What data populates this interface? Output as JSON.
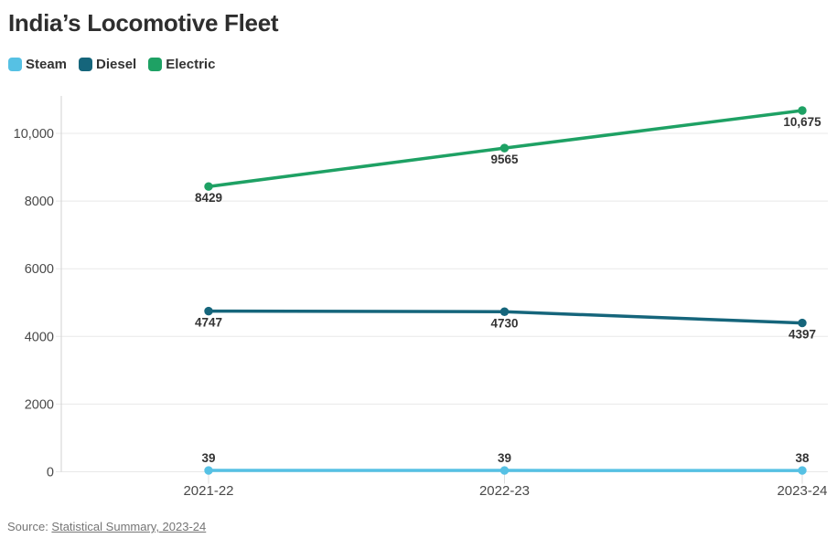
{
  "page": {
    "title": "India’s Locomotive Fleet",
    "source_prefix": "Source: ",
    "source_link": "Statistical Summary, 2023-24"
  },
  "chart_data": {
    "type": "line",
    "title": "India’s Locomotive Fleet",
    "categories": [
      "2021-22",
      "2022-23",
      "2023-24"
    ],
    "series": [
      {
        "name": "Steam",
        "color": "#56c1e4",
        "values": [
          39,
          39,
          38
        ],
        "value_labels": [
          "39",
          "39",
          "38"
        ],
        "label_position": "above"
      },
      {
        "name": "Diesel",
        "color": "#15657b",
        "values": [
          4747,
          4730,
          4397
        ],
        "value_labels": [
          "4747",
          "4730",
          "4397"
        ],
        "label_position": "below"
      },
      {
        "name": "Electric",
        "color": "#1ea164",
        "values": [
          8429,
          9565,
          10675
        ],
        "value_labels": [
          "8429",
          "9565",
          "10,675"
        ],
        "label_position": "below"
      }
    ],
    "yticks": [
      {
        "value": 0,
        "label": "0"
      },
      {
        "value": 2000,
        "label": "2000"
      },
      {
        "value": 4000,
        "label": "4000"
      },
      {
        "value": 6000,
        "label": "6000"
      },
      {
        "value": 8000,
        "label": "8000"
      },
      {
        "value": 10000,
        "label": "10,000"
      }
    ],
    "ylim": [
      0,
      11100
    ],
    "grid": true,
    "legend_position": "top-left",
    "xlabel": "",
    "ylabel": ""
  },
  "colors": {
    "title": "#2e2e2e",
    "axis_text": "#494949",
    "grid": "#e8e8e8",
    "axis_line": "#d2d2d2",
    "x_tick": "#dddddd",
    "data_label": "#333333",
    "source": "#757575"
  }
}
